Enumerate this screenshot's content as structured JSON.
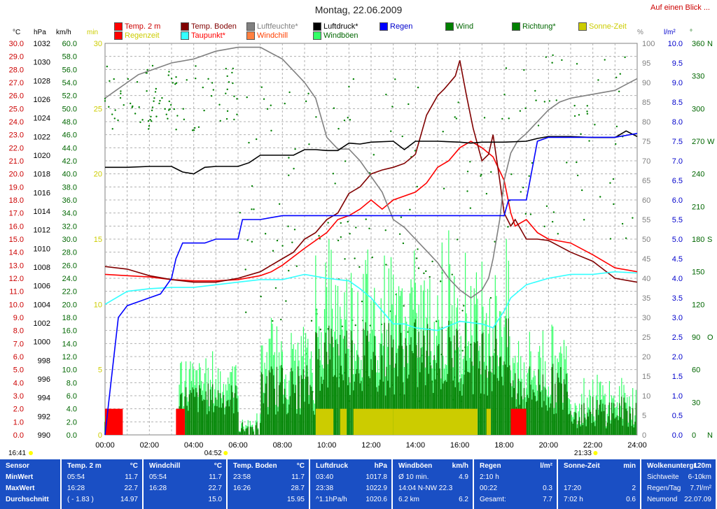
{
  "title": "Montag, 22.06.2009",
  "top_link": "Auf einen Blick ...",
  "legend": [
    {
      "label": "Temp. 2 m",
      "color": "#ff0000",
      "text_color": "#cc0000"
    },
    {
      "label": "Regenzeit",
      "color": "#ff0000",
      "text_color": "#cccc00"
    },
    {
      "label": "Temp. Boden",
      "color": "#800000",
      "text_color": "#800000"
    },
    {
      "label": "Taupunkt*",
      "color": "#33ffff",
      "text_color": "#ff0000"
    },
    {
      "label": "Luftfeuchte*",
      "color": "#808080",
      "text_color": "#808080"
    },
    {
      "label": "Windchill",
      "color": "#ff8040",
      "text_color": "#ff4000"
    },
    {
      "label": "Luftdruck*",
      "color": "#000000",
      "text_color": "#000000"
    },
    {
      "label": "Windböen",
      "color": "#33ff66",
      "text_color": "#006600"
    },
    {
      "label": "Regen",
      "color": "#0000ff",
      "text_color": "#0000cc"
    },
    {
      "label": "Wind",
      "color": "#008000",
      "text_color": "#006600"
    },
    {
      "label": "Richtung*",
      "color": "#008000",
      "text_color": "#006600"
    },
    {
      "label": "Sonne-Zeit",
      "color": "#cccc00",
      "text_color": "#cccc00"
    }
  ],
  "units": {
    "temp": "°C",
    "pressure": "hPa",
    "wind": "km/h",
    "minutes": "min",
    "humidity": "%",
    "rain": "l/m²",
    "direction": "°"
  },
  "colors": {
    "temp_axis": "#cc0000",
    "pressure_axis": "#000000",
    "wind_axis": "#006600",
    "min_axis": "#cccc00",
    "humidity_axis": "#808080",
    "rain_axis": "#0000cc",
    "dir_axis": "#006600",
    "stats_bg": "#1a4fc4"
  },
  "chart_data": {
    "type": "line",
    "x_labels": [
      "00:00",
      "02:00",
      "04:00",
      "06:00",
      "08:00",
      "10:00",
      "12:00",
      "14:00",
      "16:00",
      "18:00",
      "20:00",
      "22:00",
      "24:00"
    ],
    "xlim": [
      0,
      24
    ],
    "axes": {
      "temp": {
        "range": [
          0,
          30
        ],
        "step": 0.5,
        "label_every": 1
      },
      "pressure": {
        "range": [
          990,
          1032
        ],
        "step": 2
      },
      "wind": {
        "range": [
          0,
          60
        ],
        "step": 2
      },
      "minutes": {
        "range": [
          0,
          30
        ],
        "step": 5
      },
      "humidity": {
        "range": [
          0,
          100
        ],
        "step": 5
      },
      "rain": {
        "range": [
          0,
          10
        ],
        "step": 0.5
      },
      "direction": {
        "range": [
          0,
          360
        ],
        "ticks": [
          0,
          30,
          60,
          90,
          120,
          150,
          180,
          210,
          240,
          270,
          300,
          330,
          360
        ],
        "labels": [
          "N",
          "",
          "",
          "O",
          "",
          "",
          "S",
          "",
          "",
          "W",
          "",
          "",
          "N"
        ]
      }
    },
    "series": [
      {
        "name": "Temp. 2 m",
        "axis": "temp",
        "color": "#ff0000",
        "x": [
          0,
          1,
          2,
          3,
          4,
          5,
          6,
          7,
          7.5,
          8,
          9,
          10,
          10.5,
          11,
          11.5,
          12,
          12.5,
          13,
          14,
          14.5,
          15,
          15.5,
          16,
          16.5,
          17,
          17.5,
          18,
          18.3,
          18.5,
          19,
          19.5,
          20,
          21,
          22,
          23,
          24
        ],
        "y": [
          12.3,
          12.2,
          12.1,
          11.9,
          11.8,
          11.8,
          11.9,
          12.2,
          12.5,
          13.0,
          14.3,
          15.5,
          16.5,
          16.8,
          17.3,
          18.0,
          17.3,
          18.0,
          18.6,
          19.3,
          20.5,
          21.0,
          22.0,
          22.5,
          22.0,
          21.3,
          19.5,
          17.0,
          16.0,
          16.5,
          15.5,
          15.0,
          14.7,
          13.8,
          12.8,
          12.5
        ]
      },
      {
        "name": "Temp. Boden",
        "axis": "temp",
        "color": "#800000",
        "x": [
          0,
          1,
          2,
          3,
          4,
          5,
          6,
          7,
          7.5,
          8,
          8.5,
          9,
          9.5,
          10,
          10.5,
          11,
          11.5,
          12,
          12.5,
          13,
          13.5,
          14,
          14.5,
          15,
          15.3,
          15.8,
          16,
          16.3,
          16.6,
          17,
          17.3,
          17.5,
          17.8,
          18,
          18.3,
          18.5,
          19,
          19.5,
          20,
          21,
          22,
          23,
          24
        ],
        "y": [
          12.9,
          12.7,
          12.2,
          11.9,
          11.7,
          11.7,
          12.0,
          12.5,
          13.0,
          13.5,
          14.0,
          15.0,
          15.5,
          16.5,
          17.0,
          18.5,
          19.0,
          20.0,
          20.3,
          20.5,
          20.8,
          21.5,
          24.5,
          26.0,
          26.5,
          27.5,
          28.7,
          26.0,
          23.5,
          21.0,
          21.5,
          23.0,
          19.5,
          17.0,
          16.0,
          16.5,
          15.0,
          15.0,
          14.9,
          14.0,
          13.3,
          12.0,
          11.7
        ]
      },
      {
        "name": "Taupunkt*",
        "axis": "temp",
        "color": "#33ffff",
        "x": [
          0,
          1,
          2,
          3,
          4,
          5,
          6,
          7,
          8,
          9,
          10,
          11,
          11.5,
          12,
          12.5,
          13,
          13.5,
          14,
          15,
          16,
          17,
          17.5,
          18,
          18.3,
          19,
          20,
          21,
          22,
          23,
          24
        ],
        "y": [
          10.0,
          11.0,
          11.2,
          11.3,
          11.3,
          11.5,
          11.7,
          11.9,
          11.9,
          12.3,
          12.0,
          11.8,
          11.2,
          10.5,
          9.5,
          8.5,
          8.5,
          8.2,
          8.0,
          8.7,
          8.5,
          8.2,
          9.5,
          10.5,
          11.5,
          12.0,
          12.3,
          12.3,
          12.5,
          12.4
        ]
      },
      {
        "name": "Luftfeuchte*",
        "axis": "humidity",
        "color": "#808080",
        "x": [
          0,
          0.5,
          1,
          1.5,
          2,
          3,
          4,
          5,
          6,
          7,
          8,
          9,
          9.5,
          10,
          10.5,
          11,
          11.5,
          12,
          12.5,
          13,
          13.5,
          14,
          14.5,
          15,
          15.5,
          16,
          16.5,
          17,
          17.3,
          17.5,
          17.8,
          18,
          18.3,
          18.6,
          19,
          19.5,
          20,
          20.5,
          21,
          22,
          23,
          24
        ],
        "y": [
          86,
          88,
          90,
          92,
          93,
          95,
          96,
          98,
          99,
          99,
          96,
          90,
          86,
          76,
          73,
          73,
          70,
          66,
          62,
          55,
          53,
          50,
          47,
          44,
          40,
          37,
          35,
          37,
          40,
          45,
          55,
          65,
          72,
          75,
          77,
          80,
          83,
          85,
          86,
          87,
          88,
          91
        ]
      },
      {
        "name": "Luftdruck*",
        "axis": "pressure",
        "color": "#000000",
        "x": [
          0,
          1,
          2,
          3,
          3.5,
          4,
          4.5,
          5,
          6,
          6.5,
          7,
          8,
          8.5,
          9,
          9.5,
          10,
          10.5,
          11,
          11.5,
          12,
          13,
          13.5,
          14,
          15,
          16,
          16.5,
          17,
          18,
          19,
          19.5,
          20,
          21,
          22,
          23,
          23.5,
          24
        ],
        "y": [
          1018.7,
          1018.7,
          1018.8,
          1018.8,
          1018.2,
          1018.0,
          1018.7,
          1018.8,
          1018.8,
          1019.2,
          1020.0,
          1020.0,
          1020.0,
          1020.6,
          1020.6,
          1020.5,
          1020.5,
          1021.3,
          1021.2,
          1021.4,
          1021.5,
          1020.6,
          1021.5,
          1021.5,
          1021.4,
          1021.3,
          1021.4,
          1021.4,
          1021.5,
          1021.8,
          1022.0,
          1022.0,
          1021.9,
          1021.9,
          1022.6,
          1022.0
        ]
      },
      {
        "name": "Regen",
        "axis": "rain",
        "color": "#0000ff",
        "x": [
          0,
          0.3,
          0.6,
          1,
          1.5,
          2,
          2.5,
          3,
          3.2,
          3.5,
          4,
          4.5,
          5,
          6,
          6.2,
          7,
          8,
          8.5,
          9,
          10,
          11,
          12,
          13,
          14,
          15,
          16,
          17,
          18,
          18.2,
          19,
          19.5,
          20,
          21,
          22,
          23,
          24
        ],
        "y": [
          0,
          1.5,
          3.0,
          3.3,
          3.4,
          3.5,
          3.6,
          4.0,
          4.5,
          4.9,
          4.9,
          4.9,
          5.0,
          5.0,
          5.5,
          5.5,
          5.6,
          5.6,
          5.6,
          5.6,
          5.6,
          5.6,
          5.6,
          5.6,
          5.6,
          5.6,
          5.6,
          5.6,
          6.0,
          6.0,
          7.5,
          7.6,
          7.6,
          7.6,
          7.6,
          7.7
        ]
      }
    ],
    "bands": [
      {
        "name": "Sonne-Zeit",
        "axis": "minutes",
        "color": "#cccc00",
        "value": 2,
        "spans": [
          [
            9.5,
            10.3
          ],
          [
            10.6,
            10.9
          ],
          [
            11.2,
            13.0
          ],
          [
            13.0,
            16.8
          ],
          [
            17.2,
            17.4
          ]
        ]
      },
      {
        "name": "Regenzeit",
        "axis": "minutes",
        "color": "#ff0000",
        "value": 2,
        "spans": [
          [
            0,
            0.8
          ],
          [
            3.2,
            3.6
          ],
          [
            18.3,
            19.0
          ]
        ]
      }
    ],
    "markers": [
      {
        "label": "16:41",
        "x": -0.5
      },
      {
        "label": "04:52",
        "x": 4.87
      },
      {
        "label": "21:33",
        "x": 21.55
      }
    ]
  },
  "stats": {
    "blocks": [
      {
        "header": [
          "Sensor"
        ],
        "rows": [
          [
            "MinWert"
          ],
          [
            "MaxWert"
          ],
          [
            "Durchschnitt"
          ]
        ]
      },
      {
        "header": [
          "Temp. 2 m",
          "°C"
        ],
        "rows": [
          [
            "05:54",
            "11.7"
          ],
          [
            "16:28",
            "22.7"
          ],
          [
            "( - 1.83 )",
            "14.97"
          ]
        ]
      },
      {
        "header": [
          "Windchill",
          "°C"
        ],
        "rows": [
          [
            "05:54",
            "11.7"
          ],
          [
            "16:28",
            "22.7"
          ],
          [
            "",
            "15.0"
          ]
        ]
      },
      {
        "header": [
          "Temp. Boden",
          "°C"
        ],
        "rows": [
          [
            "23:58",
            "11.7"
          ],
          [
            "16:26",
            "28.7"
          ],
          [
            "",
            "15.95"
          ]
        ]
      },
      {
        "header": [
          "Luftdruck",
          "hPa"
        ],
        "rows": [
          [
            "03:40",
            "1017.8"
          ],
          [
            "23:38",
            "1022.9"
          ],
          [
            "^1.1hPa/h",
            "1020.6"
          ]
        ]
      },
      {
        "header": [
          "Windböen",
          "km/h"
        ],
        "rows": [
          [
            "Ø 10 min.",
            "4.9"
          ],
          [
            "14:04  N-NW 22.3",
            ""
          ],
          [
            "6.2 km",
            "6.2"
          ]
        ]
      },
      {
        "header": [
          "Regen",
          "l/m²"
        ],
        "rows": [
          [
            "2:10 h",
            ""
          ],
          [
            "00:22",
            "0.3"
          ],
          [
            "Gesamt:",
            "7.7"
          ]
        ]
      },
      {
        "header": [
          "Sonne-Zeit",
          "min"
        ],
        "rows": [
          [
            "",
            ""
          ],
          [
            "17:20",
            "2"
          ],
          [
            "7:02 h",
            "0.6"
          ]
        ]
      },
      {
        "header": [
          "Wolkenuntergr.",
          "120m"
        ],
        "rows": [
          [
            "Sichtweite",
            "6-10km"
          ],
          [
            "Regen/Tag",
            "7.7l/m²"
          ],
          [
            "Neumond",
            "22.07.09"
          ]
        ]
      }
    ]
  }
}
